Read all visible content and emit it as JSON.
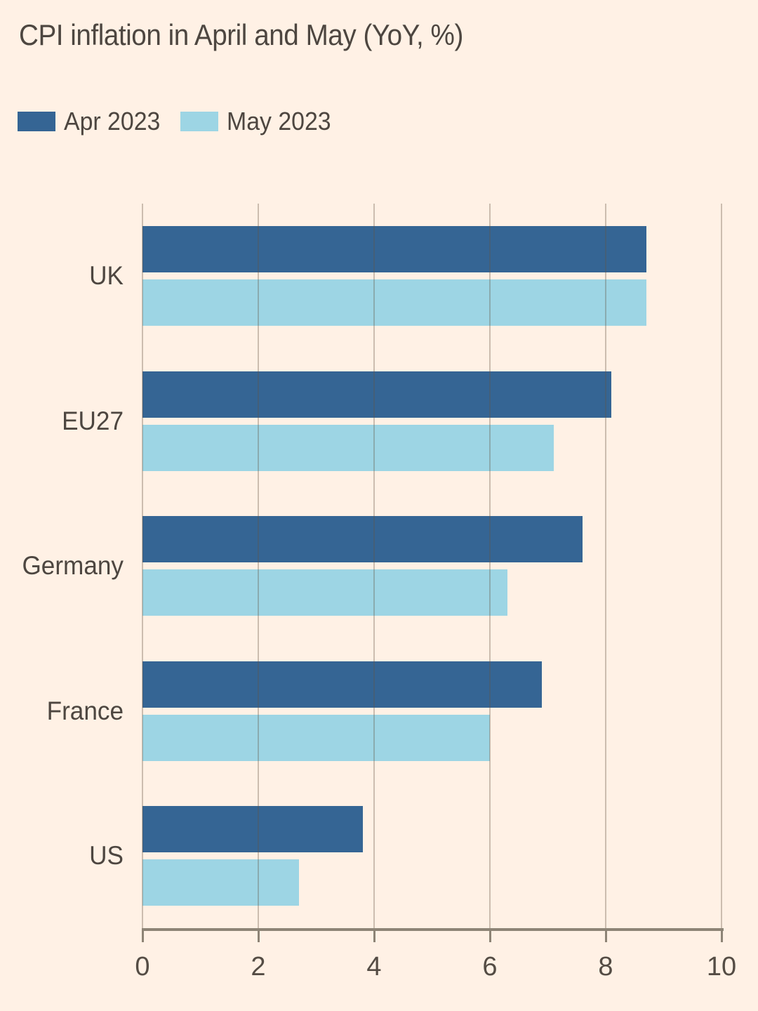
{
  "chart": {
    "colors": {
      "background": "#FFF1E5",
      "title_text": "#4D4640",
      "category_text": "#4D4640",
      "tick_text": "#544C44",
      "gridline": "rgba(100,85,68,0.33)",
      "axis": "#8D8476"
    }
  },
  "chart_data": {
    "type": "bar",
    "orientation": "horizontal",
    "title": "CPI inflation in April and May (YoY, %)",
    "categories": [
      "UK",
      "EU27",
      "Germany",
      "France",
      "US"
    ],
    "series": [
      {
        "name": "Apr 2023",
        "color": "#356594",
        "values": [
          8.7,
          8.1,
          7.6,
          6.9,
          3.8
        ]
      },
      {
        "name": "May 2023",
        "color": "#9DD5E4",
        "values": [
          8.7,
          7.1,
          6.3,
          6.0,
          2.7
        ]
      }
    ],
    "xlabel": "",
    "ylabel": "",
    "xlim": [
      0,
      10
    ],
    "xticks": [
      0,
      2,
      4,
      6,
      8,
      10
    ],
    "xtick_labels": [
      "0",
      "2",
      "4",
      "6",
      "8",
      "10"
    ],
    "grid": "vertical",
    "legend_position": "top-left",
    "legend_labels": [
      "Apr 2023",
      "May 2023"
    ]
  }
}
